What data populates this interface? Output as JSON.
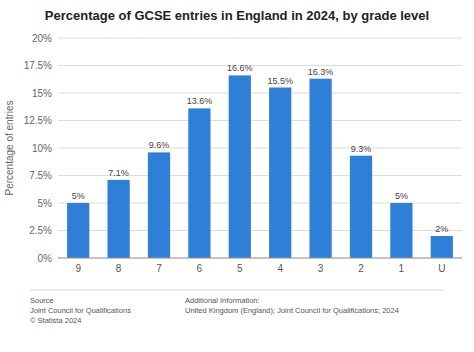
{
  "chart_data": {
    "type": "bar",
    "title": "Percentage of GCSE entries in England in 2024, by grade level",
    "categories": [
      "9",
      "8",
      "7",
      "6",
      "5",
      "4",
      "3",
      "2",
      "1",
      "U"
    ],
    "values": [
      5.0,
      7.1,
      9.6,
      13.6,
      16.6,
      15.5,
      16.3,
      9.3,
      5.0,
      2.0
    ],
    "value_labels": [
      "5%",
      "7.1%",
      "9.6%",
      "13.6%",
      "16.6%",
      "15.5%",
      "16.3%",
      "9.3%",
      "5%",
      "2%"
    ],
    "data_labels": true,
    "color": "#2e7fd8",
    "ylabel": "Percentage of entries",
    "ylim": [
      0,
      20
    ],
    "yticks": [
      {
        "value": 0,
        "label": "0%"
      },
      {
        "value": 2.5,
        "label": "2.5%"
      },
      {
        "value": 5,
        "label": "5%"
      },
      {
        "value": 7.5,
        "label": "7.5%"
      },
      {
        "value": 10,
        "label": "10%"
      },
      {
        "value": 12.5,
        "label": "12.5%"
      },
      {
        "value": 15,
        "label": "15%"
      },
      {
        "value": 17.5,
        "label": "17.5%"
      },
      {
        "value": 20,
        "label": "20%"
      }
    ],
    "grid": true,
    "annotations": [
      "Source\nJoint Council for Qualifications\n© Statista 2024",
      "Additional Information:\nUnited Kingdom (England); Joint Council for Qualifications; 2024"
    ]
  }
}
